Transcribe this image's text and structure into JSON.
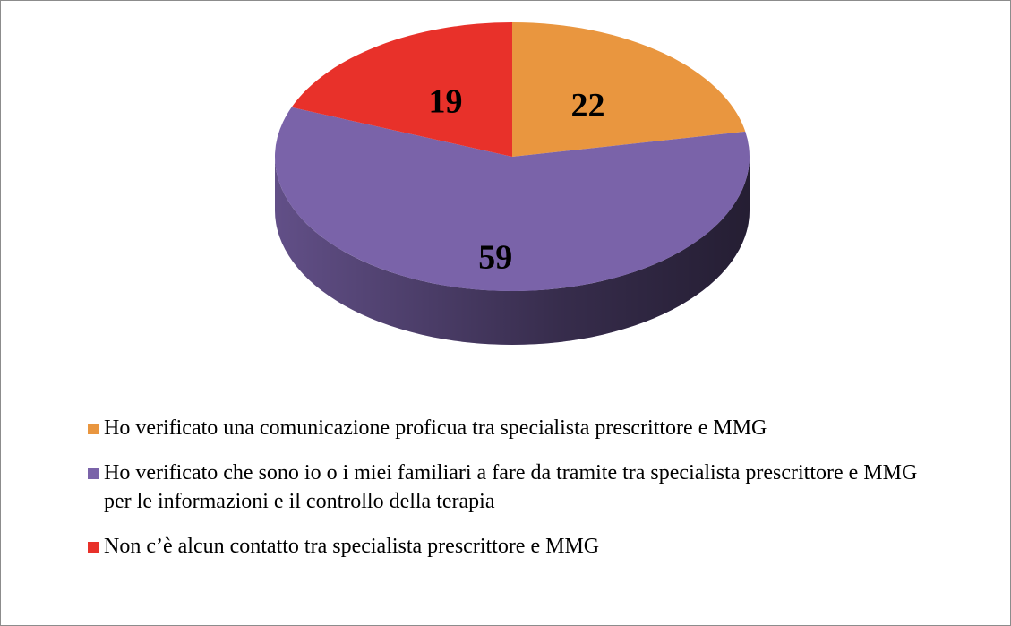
{
  "chart_data": {
    "type": "pie",
    "categories": [
      "Ho verificato una comunicazione proficua tra specialista prescrittore e MMG",
      "Ho verificato che sono io o i miei familiari a fare da tramite tra specialista prescrittore e MMG per le informazioni e il controllo della terapia",
      "Non c’è alcun contatto tra specialista prescrittore e MMG"
    ],
    "values": [
      22,
      59,
      19
    ],
    "colors": [
      "#e9963f",
      "#7a63a9",
      "#e8312a"
    ],
    "legend": "bottom"
  }
}
